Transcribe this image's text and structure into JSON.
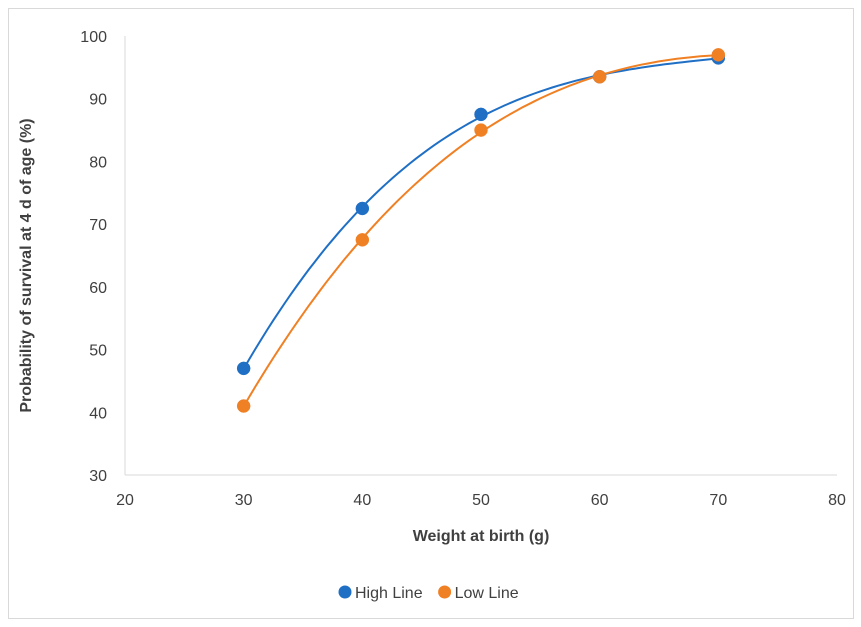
{
  "chart_data": {
    "type": "scatter",
    "title": "",
    "xlabel": "Weight at birth (g)",
    "ylabel": "Probability of survival at 4 d of age (%)",
    "xlim": [
      20,
      80
    ],
    "ylim": [
      30,
      100
    ],
    "xticks": [
      "20",
      "30",
      "40",
      "50",
      "60",
      "70",
      "80"
    ],
    "yticks": [
      "30",
      "40",
      "50",
      "60",
      "70",
      "80",
      "90",
      "100"
    ],
    "grid": false,
    "trendline": "polynomial",
    "legend_position": "bottom",
    "series": [
      {
        "name": "High Line",
        "color": "#1f6fc5",
        "x": [
          30,
          40,
          50,
          60,
          70
        ],
        "y": [
          47,
          72.5,
          87.5,
          93.5,
          96.5
        ]
      },
      {
        "name": "Low Line",
        "color": "#f08024",
        "x": [
          30,
          40,
          50,
          60,
          70
        ],
        "y": [
          41,
          67.5,
          85,
          93.5,
          97
        ]
      }
    ]
  }
}
